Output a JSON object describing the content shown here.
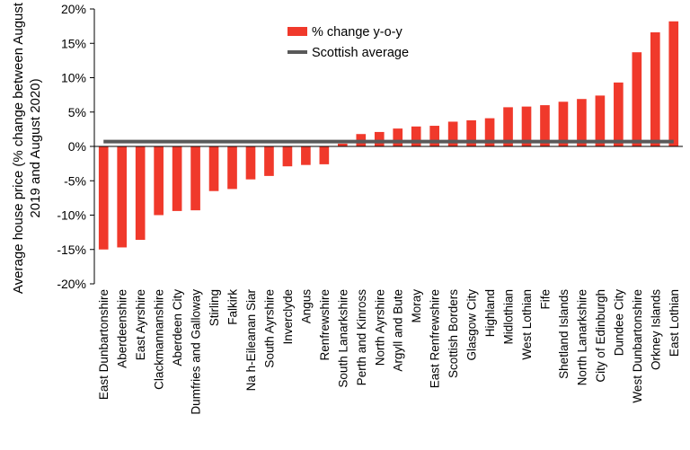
{
  "chart_data": {
    "type": "bar",
    "ylabel": "Average house price (% change between August 2019 and August 2020)",
    "ylim": [
      -20,
      20
    ],
    "yticks": [
      "-20%",
      "-15%",
      "-10%",
      "-5%",
      "0%",
      "5%",
      "10%",
      "15%",
      "20%"
    ],
    "categories": [
      "East Dunbartonshire",
      "Aberdeenshire",
      "East Ayrshire",
      "Clackmannanshire",
      "Aberdeen City",
      "Dumfries and Galloway",
      "Stirling",
      "Falkirk",
      "Na h-Eileanan Siar",
      "South Ayrshire",
      "Inverclyde",
      "Angus",
      "Renfrewshire",
      "South Lanarkshire",
      "Perth and Kinross",
      "North Ayrshire",
      "Argyll and Bute",
      "Moray",
      "East Renfrewshire",
      "Scottish Borders",
      "Glasgow City",
      "Highland",
      "Midlothian",
      "West Lothian",
      "Fife",
      "Shetland Islands",
      "North Lanarkshire",
      "City of Edinburgh",
      "Dundee City",
      "West Dunbartonshire",
      "Orkney Islands",
      "East Lothian"
    ],
    "series": [
      {
        "name": "% change y-o-y",
        "color": "#f0392b",
        "values": [
          -15.0,
          -14.7,
          -13.6,
          -10.0,
          -9.4,
          -9.3,
          -6.5,
          -6.2,
          -4.8,
          -4.3,
          -2.9,
          -2.7,
          -2.6,
          0.4,
          1.8,
          2.1,
          2.6,
          2.9,
          3.0,
          3.6,
          3.8,
          4.1,
          5.7,
          5.8,
          6.0,
          6.5,
          6.9,
          7.4,
          9.3,
          13.7,
          16.6,
          18.2
        ]
      },
      {
        "name": "Scottish average",
        "color": "#595959",
        "value": 0.7
      }
    ],
    "legend": "top-center",
    "grid": false
  }
}
